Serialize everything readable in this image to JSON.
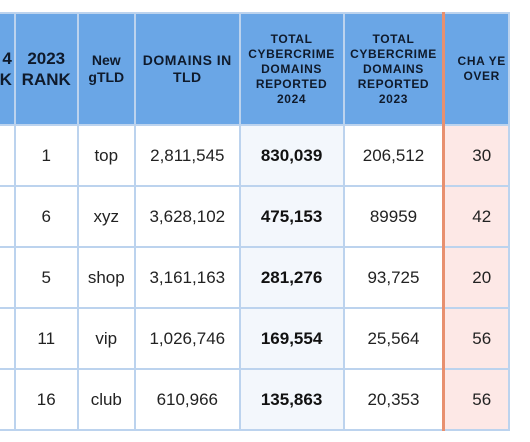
{
  "table": {
    "headers": {
      "rank_2024": "4\nK",
      "rank_2023": "2023 RANK",
      "gtld": "New gTLD",
      "domains": "DOMAINS IN TLD",
      "total_2024": "TOTAL CYBERCRIME DOMAINS REPORTED 2024",
      "total_2023": "TOTAL CYBERCRIME DOMAINS REPORTED 2023",
      "change": "CHA YE OVER"
    },
    "rows": [
      {
        "rank_2023": "1",
        "gtld": "top",
        "domains": "2,811,545",
        "total_2024": "830,039",
        "total_2023": "206,512",
        "change": "30"
      },
      {
        "rank_2023": "6",
        "gtld": "xyz",
        "domains": "3,628,102",
        "total_2024": "475,153",
        "total_2023": "89959",
        "change": "42"
      },
      {
        "rank_2023": "5",
        "gtld": "shop",
        "domains": "3,161,163",
        "total_2024": "281,276",
        "total_2023": "93,725",
        "change": "20"
      },
      {
        "rank_2023": "11",
        "gtld": "vip",
        "domains": "1,026,746",
        "total_2024": "169,554",
        "total_2023": "25,564",
        "change": "56"
      },
      {
        "rank_2023": "16",
        "gtld": "club",
        "domains": "610,966",
        "total_2024": "135,863",
        "total_2023": "20,353",
        "change": "56"
      }
    ]
  }
}
